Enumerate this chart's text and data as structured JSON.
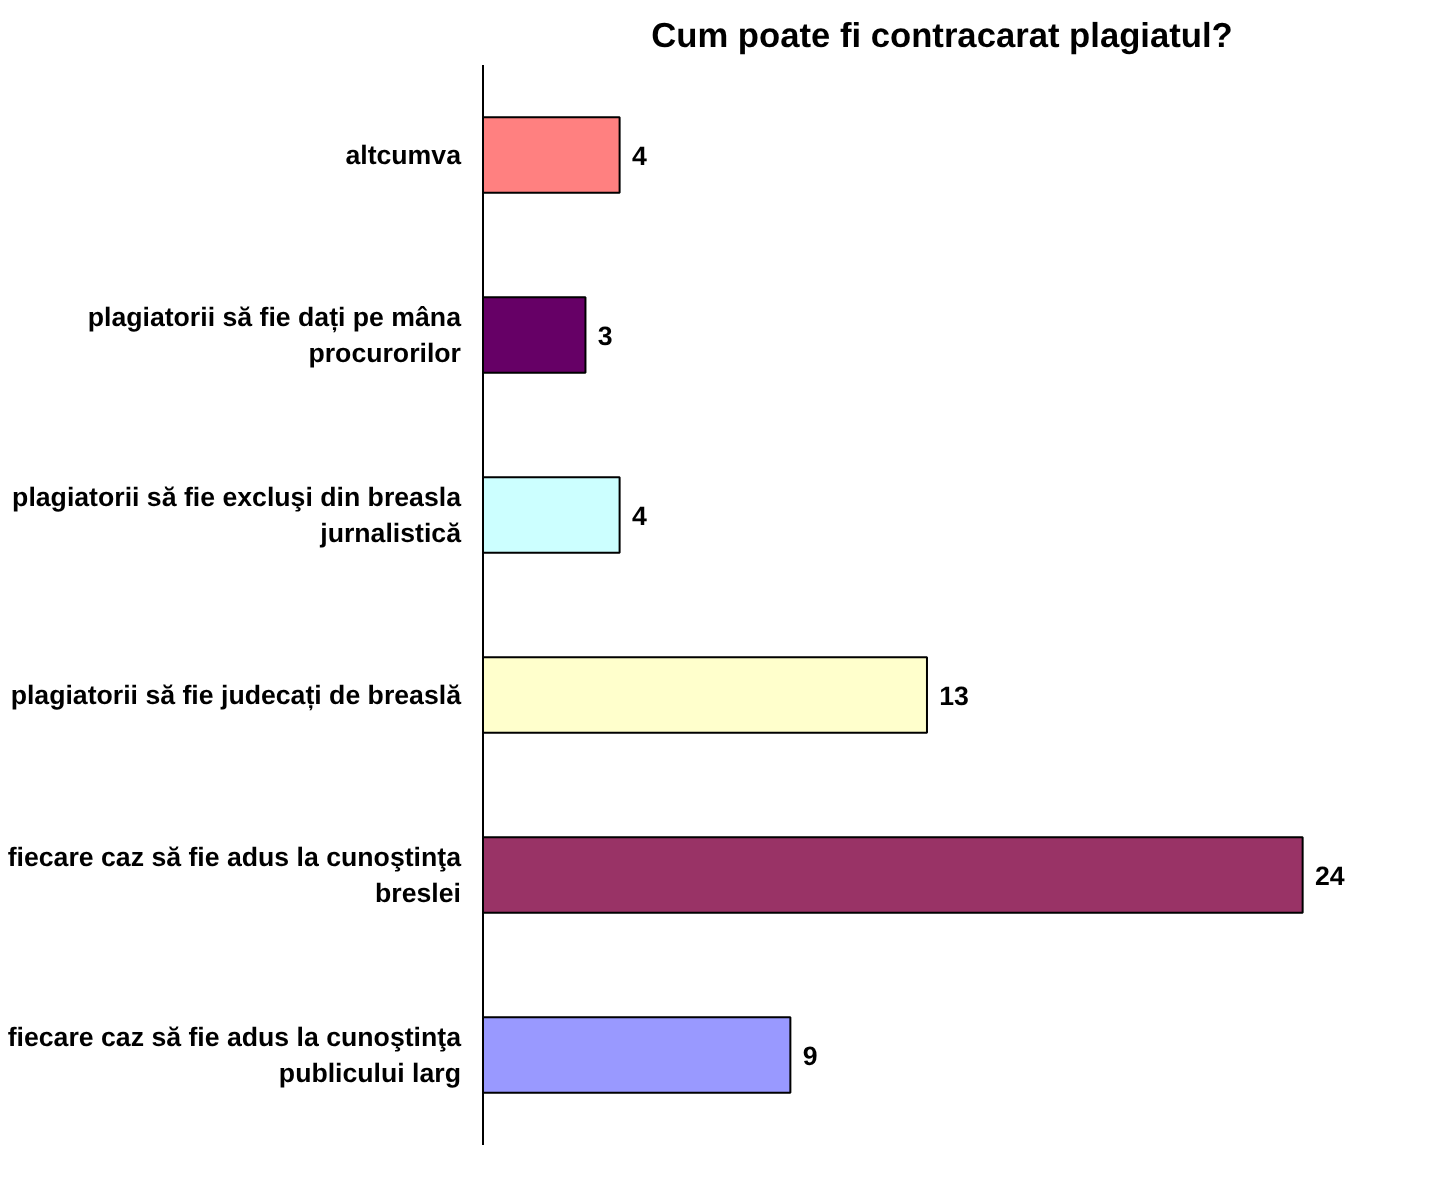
{
  "chart_data": {
    "type": "bar",
    "orientation": "horizontal",
    "title": "Cum poate fi contracarat plagiatul?",
    "categories": [
      "altcumva",
      "plagiatorii să fie dați pe mâna procurorilor",
      "plagiatorii să fie excluşi din breasla jurnalistică",
      "plagiatorii să fie judecați de breaslă",
      "fiecare caz să fie adus la cunoştinţa breslei",
      "fiecare caz să fie adus la cunoştinţa publicului larg"
    ],
    "values": [
      4,
      3,
      4,
      13,
      24,
      9
    ],
    "colors": [
      "#ff8080",
      "#660066",
      "#ccffff",
      "#ffffcc",
      "#993366",
      "#9999ff"
    ],
    "data_labels": true,
    "grid": false
  }
}
